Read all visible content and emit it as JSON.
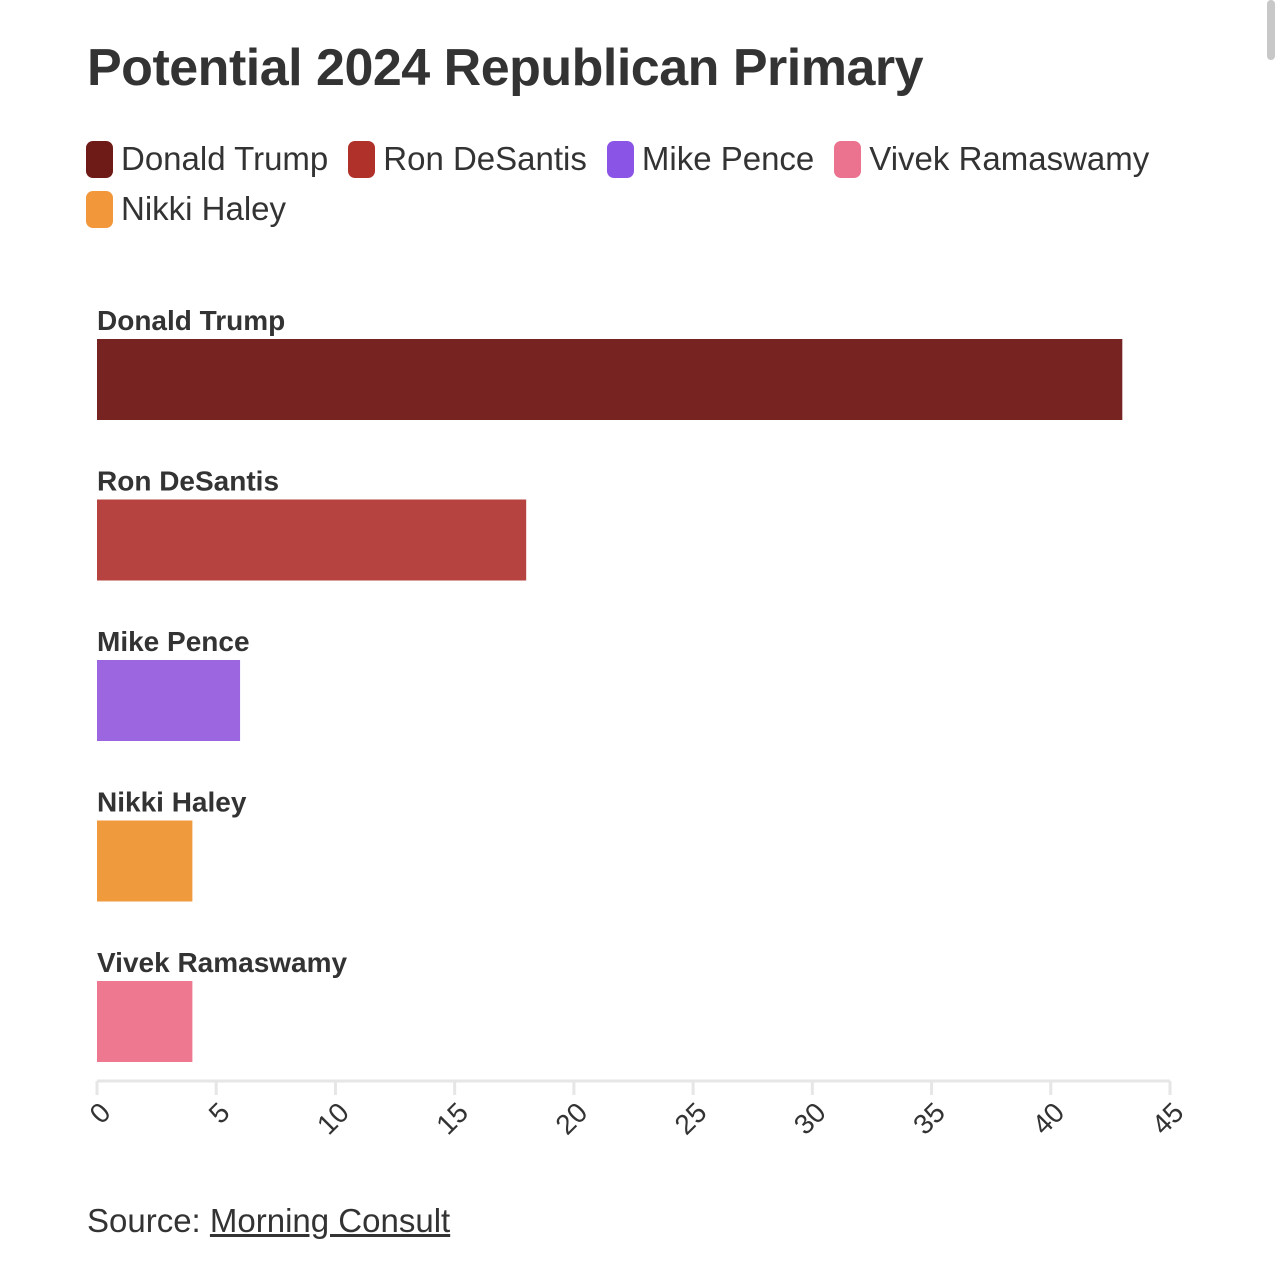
{
  "chart_data": {
    "type": "bar",
    "orientation": "horizontal",
    "title": "Potential 2024 Republican Primary",
    "categories": [
      "Donald Trump",
      "Ron DeSantis",
      "Mike Pence",
      "Nikki Haley",
      "Vivek Ramaswamy"
    ],
    "values": [
      43,
      18,
      6,
      4,
      4
    ],
    "colors": [
      "#772322",
      "#b6433f",
      "#9b66e0",
      "#f09a3e",
      "#ed7890"
    ],
    "xlim": [
      0,
      45
    ],
    "x_ticks": [
      "0",
      "5",
      "10",
      "15",
      "20",
      "25",
      "30",
      "35",
      "40",
      "45"
    ],
    "xlabel": "",
    "ylabel": "",
    "grid": false,
    "legend": {
      "placement": "top-left",
      "entries": [
        {
          "label": "Donald Trump",
          "color": "#6e1a16"
        },
        {
          "label": "Ron DeSantis",
          "color": "#b0302a"
        },
        {
          "label": "Mike Pence",
          "color": "#8a55e6"
        },
        {
          "label": "Vivek Ramaswamy",
          "color": "#ec7390"
        },
        {
          "label": "Nikki Haley",
          "color": "#f2973a"
        }
      ]
    }
  },
  "source": {
    "prefix": "Source: ",
    "link_text": "Morning Consult"
  }
}
